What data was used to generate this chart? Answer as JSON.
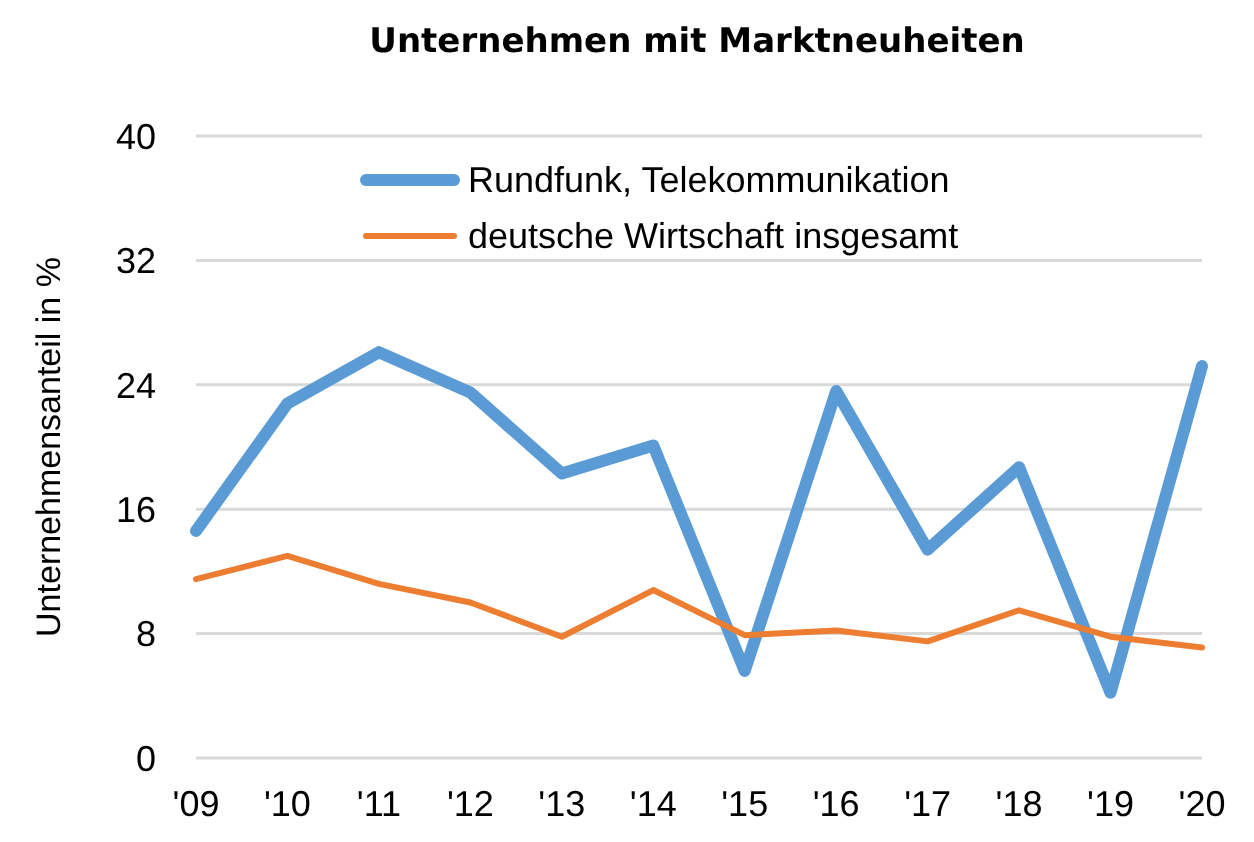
{
  "chart_data": {
    "type": "line",
    "title": "Unternehmen mit Marktneuheiten",
    "ylabel": "Unternehmensanteil in %",
    "categories": [
      "'09",
      "'10",
      "'11",
      "'12",
      "'13",
      "'14",
      "'15",
      "'16",
      "'17",
      "'18",
      "'19",
      "'20"
    ],
    "series": [
      {
        "name": "Rundfunk, Telekommunikation",
        "color": "#5b9bd5",
        "values": [
          14.6,
          22.8,
          26.1,
          23.5,
          18.3,
          20.1,
          5.6,
          23.6,
          13.4,
          18.7,
          4.2,
          25.2
        ]
      },
      {
        "name": "deutsche Wirtschaft insgesamt",
        "color": "#ed7d31",
        "values": [
          11.5,
          13.0,
          11.2,
          10.0,
          7.8,
          10.8,
          7.9,
          8.2,
          7.5,
          9.5,
          7.8,
          7.1
        ]
      }
    ],
    "ylim": [
      0,
      40
    ],
    "yticks": [
      0,
      8,
      16,
      24,
      32,
      40
    ],
    "grid": "y",
    "legend": "top",
    "marker": "none",
    "line_style": "solid"
  }
}
